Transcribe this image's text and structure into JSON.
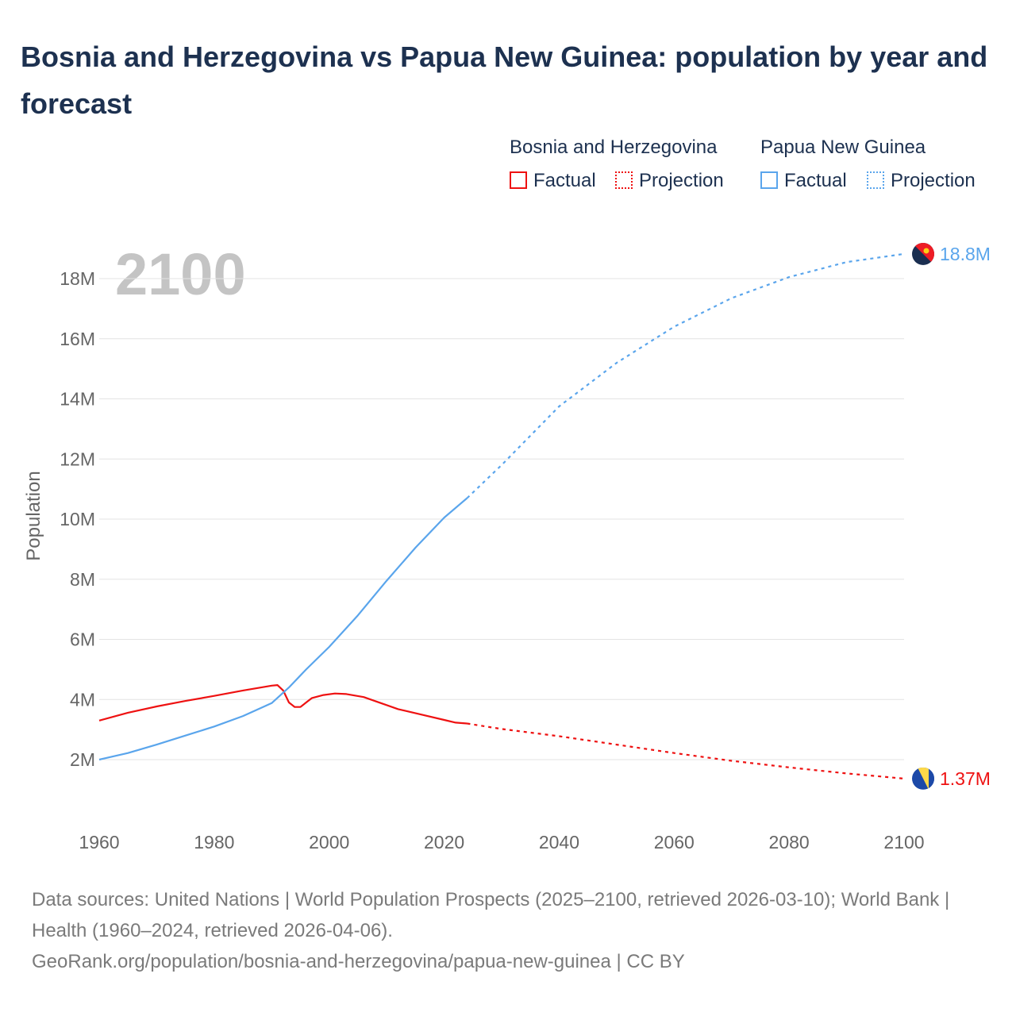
{
  "title": "Bosnia and Herzegovina vs Papua New Guinea: population by year and forecast",
  "legend": {
    "groups": [
      {
        "name": "Bosnia and Herzegovina",
        "factual": "Factual",
        "projection": "Projection",
        "color": "#ee1111"
      },
      {
        "name": "Papua New Guinea",
        "factual": "Factual",
        "projection": "Projection",
        "color": "#5aa5ec"
      }
    ]
  },
  "year_label": "2100",
  "chart_data": {
    "type": "line",
    "ylabel": "Population",
    "xlim": [
      1960,
      2100
    ],
    "ylim": [
      0,
      19000000
    ],
    "x_ticks": [
      "1960",
      "1980",
      "2000",
      "2020",
      "2040",
      "2060",
      "2080",
      "2100"
    ],
    "y_ticks": [
      {
        "v": 2000000,
        "label": "2M"
      },
      {
        "v": 4000000,
        "label": "4M"
      },
      {
        "v": 6000000,
        "label": "6M"
      },
      {
        "v": 8000000,
        "label": "8M"
      },
      {
        "v": 10000000,
        "label": "10M"
      },
      {
        "v": 12000000,
        "label": "12M"
      },
      {
        "v": 14000000,
        "label": "14M"
      },
      {
        "v": 16000000,
        "label": "16M"
      },
      {
        "v": 18000000,
        "label": "18M"
      }
    ],
    "grid": true,
    "series": [
      {
        "name": "Bosnia and Herzegovina",
        "color": "#ee1111",
        "end_label": "1.37M",
        "factual": [
          [
            1960,
            3.3
          ],
          [
            1965,
            3.56
          ],
          [
            1970,
            3.77
          ],
          [
            1975,
            3.95
          ],
          [
            1980,
            4.12
          ],
          [
            1985,
            4.3
          ],
          [
            1990,
            4.46
          ],
          [
            1991,
            4.48
          ],
          [
            1992,
            4.3
          ],
          [
            1993,
            3.9
          ],
          [
            1994,
            3.75
          ],
          [
            1995,
            3.75
          ],
          [
            1996,
            3.9
          ],
          [
            1997,
            4.05
          ],
          [
            1999,
            4.15
          ],
          [
            2001,
            4.2
          ],
          [
            2003,
            4.18
          ],
          [
            2006,
            4.08
          ],
          [
            2009,
            3.88
          ],
          [
            2012,
            3.68
          ],
          [
            2016,
            3.5
          ],
          [
            2020,
            3.32
          ],
          [
            2022,
            3.23
          ],
          [
            2024,
            3.2
          ]
        ],
        "projection": [
          [
            2024,
            3.2
          ],
          [
            2030,
            3.02
          ],
          [
            2040,
            2.78
          ],
          [
            2050,
            2.5
          ],
          [
            2060,
            2.22
          ],
          [
            2070,
            1.96
          ],
          [
            2080,
            1.74
          ],
          [
            2090,
            1.54
          ],
          [
            2100,
            1.37
          ]
        ]
      },
      {
        "name": "Papua New Guinea",
        "color": "#5aa5ec",
        "end_label": "18.8M",
        "factual": [
          [
            1960,
            2.0
          ],
          [
            1965,
            2.22
          ],
          [
            1970,
            2.5
          ],
          [
            1975,
            2.8
          ],
          [
            1980,
            3.1
          ],
          [
            1985,
            3.45
          ],
          [
            1990,
            3.88
          ],
          [
            1993,
            4.4
          ],
          [
            1996,
            5.0
          ],
          [
            2000,
            5.75
          ],
          [
            2005,
            6.8
          ],
          [
            2010,
            7.95
          ],
          [
            2015,
            9.05
          ],
          [
            2020,
            10.05
          ],
          [
            2024,
            10.7
          ]
        ],
        "projection": [
          [
            2024,
            10.7
          ],
          [
            2030,
            11.8
          ],
          [
            2040,
            13.75
          ],
          [
            2050,
            15.2
          ],
          [
            2060,
            16.4
          ],
          [
            2070,
            17.35
          ],
          [
            2080,
            18.05
          ],
          [
            2090,
            18.55
          ],
          [
            2100,
            18.82
          ]
        ]
      }
    ]
  },
  "footer": {
    "line1": "Data sources: United Nations | World Population Prospects (2025–2100, retrieved 2026-03-10); World Bank | Health (1960–2024, retrieved 2026-04-06).",
    "line2": "GeoRank.org/population/bosnia-and-herzegovina/papua-new-guinea | CC BY"
  }
}
